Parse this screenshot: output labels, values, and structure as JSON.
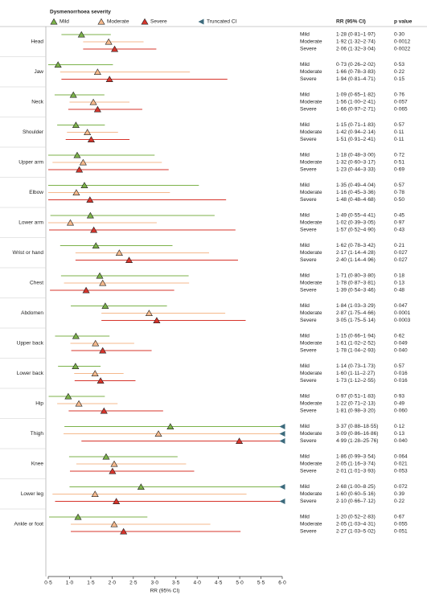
{
  "chart_data": {
    "type": "forest",
    "legend_title": "Dysmenorrhoea severity",
    "truncated_label": "Truncated CI",
    "truncated_color": "#3d6b7d",
    "table_header": "RR (95% CI)",
    "p_header": "p value",
    "x_label": "RR (95% CI)",
    "xlim": [
      0.5,
      6.0
    ],
    "xticks": [
      {
        "value": 0.5,
        "label": "0·5"
      },
      {
        "value": 1.0,
        "label": "1·0"
      },
      {
        "value": 1.5,
        "label": "1·5"
      },
      {
        "value": 2.0,
        "label": "2·0"
      },
      {
        "value": 2.5,
        "label": "2·5"
      },
      {
        "value": 3.0,
        "label": "3·0"
      },
      {
        "value": 3.5,
        "label": "3·5"
      },
      {
        "value": 4.0,
        "label": "4·0"
      },
      {
        "value": 4.5,
        "label": "4·5"
      },
      {
        "value": 5.0,
        "label": "5·0"
      },
      {
        "value": 5.5,
        "label": "5·5"
      },
      {
        "value": 6.0,
        "label": "6·0"
      }
    ],
    "categories": [
      "Head",
      "Jaw",
      "Neck",
      "Shoulder",
      "Upper arm",
      "Elbow",
      "Lower arm",
      "Wrist or hand",
      "Chest",
      "Abdomen",
      "Upper back",
      "Lower back",
      "Hip",
      "Thigh",
      "Knee",
      "Lower leg",
      "Ankle or foot"
    ],
    "series": [
      {
        "name": "Mild",
        "color": "#7cb24a",
        "values": [
          1.28,
          0.73,
          1.09,
          1.15,
          1.18,
          1.35,
          1.49,
          1.62,
          1.71,
          1.84,
          1.15,
          1.14,
          0.97,
          3.37,
          1.86,
          2.68,
          1.2
        ],
        "lower": [
          0.81,
          0.26,
          0.65,
          0.71,
          0.48,
          0.49,
          0.55,
          0.78,
          0.8,
          1.03,
          0.66,
          0.73,
          0.51,
          0.88,
          0.99,
          1.0,
          0.52
        ],
        "upper": [
          1.97,
          2.02,
          1.82,
          1.83,
          3.0,
          4.04,
          4.41,
          3.42,
          3.8,
          3.29,
          1.94,
          1.73,
          1.83,
          18.55,
          3.54,
          8.25,
          2.83
        ],
        "value_labels": [
          "1·28 (0·81–1·97)",
          "0·73 (0·26–2·02)",
          "1·09 (0·65–1·82)",
          "1·15 (0·71–1·83)",
          "1·18 (0·48–3·00)",
          "1·35 (0·49–4·04)",
          "1·49 (0·55–4·41)",
          "1·62 (0·78–3·42)",
          "1·71 (0·80–3·80)",
          "1·84 (1·03–3·29)",
          "1·15 (0·66–1·94)",
          "1·14 (0·73–1·73)",
          "0·97 (0·51–1·83)",
          "3·37 (0·88–18·55)",
          "1·86 (0·99–3·54)",
          "2·68 (1·00–8·25)",
          "1·20 (0·52–2·83)"
        ],
        "p_values": [
          "0·30",
          "0·53",
          "0·76",
          "0·57",
          "0·72",
          "0·57",
          "0·45",
          "0·21",
          "0·18",
          "0·047",
          "0·62",
          "0·57",
          "0·93",
          "0·12",
          "0·064",
          "0·072",
          "0·67"
        ]
      },
      {
        "name": "Moderate",
        "color": "#f5b98c",
        "values": [
          1.92,
          1.66,
          1.56,
          1.42,
          1.32,
          1.16,
          1.02,
          2.17,
          1.78,
          2.87,
          1.61,
          1.6,
          1.22,
          3.09,
          2.05,
          1.6,
          2.05
        ],
        "lower": [
          1.32,
          0.78,
          1.0,
          0.94,
          0.6,
          0.45,
          0.39,
          1.14,
          0.87,
          1.75,
          1.02,
          1.11,
          0.71,
          0.86,
          1.16,
          0.6,
          1.03
        ],
        "upper": [
          2.74,
          3.83,
          2.41,
          2.14,
          3.17,
          3.36,
          3.05,
          4.28,
          3.81,
          4.66,
          2.52,
          2.27,
          2.13,
          16.86,
          3.74,
          5.16,
          4.31
        ],
        "value_labels": [
          "1·92 (1·32–2·74)",
          "1·66 (0·78–3·83)",
          "1·56 (1·00–2·41)",
          "1·42 (0·94–2·14)",
          "1·32 (0·60–3·17)",
          "1·16 (0·45–3·36)",
          "1·02 (0·39–3·05)",
          "2·17 (1·14–4·28)",
          "1·78 (0·87–3·81)",
          "2·87 (1·75–4·66)",
          "1·61 (1·02–2·52)",
          "1·60 (1·11–2·27)",
          "1·22 (0·71–2·13)",
          "3·09 (0·86–16·86)",
          "2·05 (1·16–3·74)",
          "1·60 (0·60–5·16)",
          "2·05 (1·03–4·31)"
        ],
        "p_values": [
          "0·0012",
          "0·22",
          "0·057",
          "0·11",
          "0·51",
          "0·78",
          "0·97",
          "0·027",
          "0·13",
          "0·0001",
          "0·049",
          "0·016",
          "0·49",
          "0·13",
          "0·021",
          "0·39",
          "0·055"
        ]
      },
      {
        "name": "Severe",
        "color": "#d7342b",
        "values": [
          2.06,
          1.94,
          1.66,
          1.51,
          1.23,
          1.48,
          1.57,
          2.4,
          1.39,
          3.05,
          1.78,
          1.73,
          1.81,
          4.99,
          2.01,
          2.1,
          2.27
        ],
        "lower": [
          1.32,
          0.81,
          0.97,
          0.91,
          0.44,
          0.48,
          0.52,
          1.14,
          0.54,
          1.75,
          1.04,
          1.12,
          0.98,
          1.28,
          1.01,
          0.66,
          1.03
        ],
        "upper": [
          3.04,
          4.71,
          2.71,
          2.41,
          3.33,
          4.68,
          4.9,
          4.96,
          3.46,
          5.14,
          2.93,
          2.55,
          3.2,
          25.76,
          3.93,
          7.12,
          5.02
        ],
        "value_labels": [
          "2·06 (1·32–3·04)",
          "1·94 (0·81–4·71)",
          "1·66 (0·97–2·71)",
          "1·51 (0·91–2·41)",
          "1·23 (0·44–3·33)",
          "1·48 (0·48–4·68)",
          "1·57 (0·52–4·90)",
          "2·40 (1·14–4·96)",
          "1·39 (0·54–3·46)",
          "3·05 (1·75–5·14)",
          "1·78 (1·04–2·93)",
          "1·73 (1·12–2·55)",
          "1·81 (0·98–3·20)",
          "4·99 (1·28–25·76)",
          "2·01 (1·01–3·93)",
          "2·10 (0·66–7·12)",
          "2·27 (1·03–5·02)"
        ],
        "p_values": [
          "0·0022",
          "0·15",
          "0·065",
          "0·11",
          "0·69",
          "0·50",
          "0·43",
          "0·027",
          "0·48",
          "0·0003",
          "0·040",
          "0·016",
          "0·060",
          "0·040",
          "0·053",
          "0·22",
          "0·051"
        ]
      }
    ]
  }
}
